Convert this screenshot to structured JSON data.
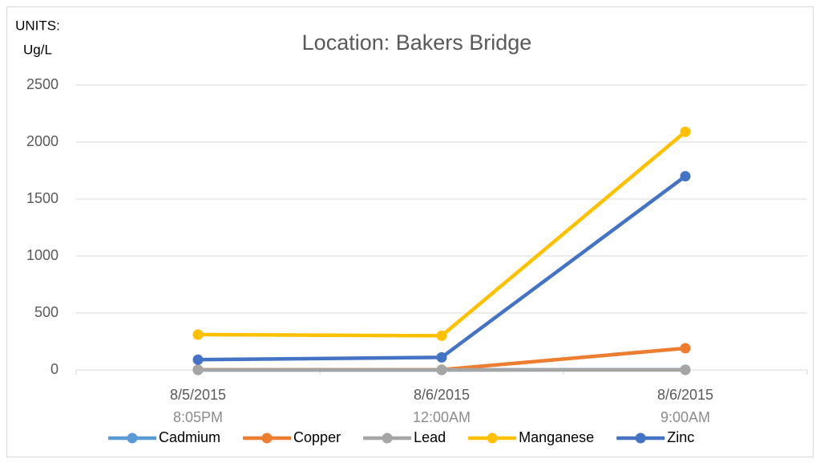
{
  "chart_data": {
    "type": "line",
    "title": "Location: Bakers Bridge",
    "y_label": [
      "UNITS:",
      "Ug/L"
    ],
    "categories": [
      "8/5/2015",
      "8/6/2015",
      "8/6/2015"
    ],
    "category_times": [
      "8:05PM",
      "12:00AM",
      "9:00AM"
    ],
    "series": [
      {
        "name": "Cadmium",
        "color": "#5b9bd5",
        "values": [
          0,
          0,
          2
        ]
      },
      {
        "name": "Copper",
        "color": "#ed7d31",
        "values": [
          2,
          2,
          190
        ]
      },
      {
        "name": "Lead",
        "color": "#a5a5a5",
        "values": [
          0,
          0,
          0
        ]
      },
      {
        "name": "Manganese",
        "color": "#ffc000",
        "values": [
          310,
          300,
          2090
        ]
      },
      {
        "name": "Zinc",
        "color": "#4472c4",
        "values": [
          90,
          110,
          1700
        ]
      }
    ],
    "ylim": [
      0,
      2500
    ],
    "yticks": [
      0,
      500,
      1000,
      1500,
      2000,
      2500
    ],
    "grid": true,
    "legend": "bottom"
  }
}
